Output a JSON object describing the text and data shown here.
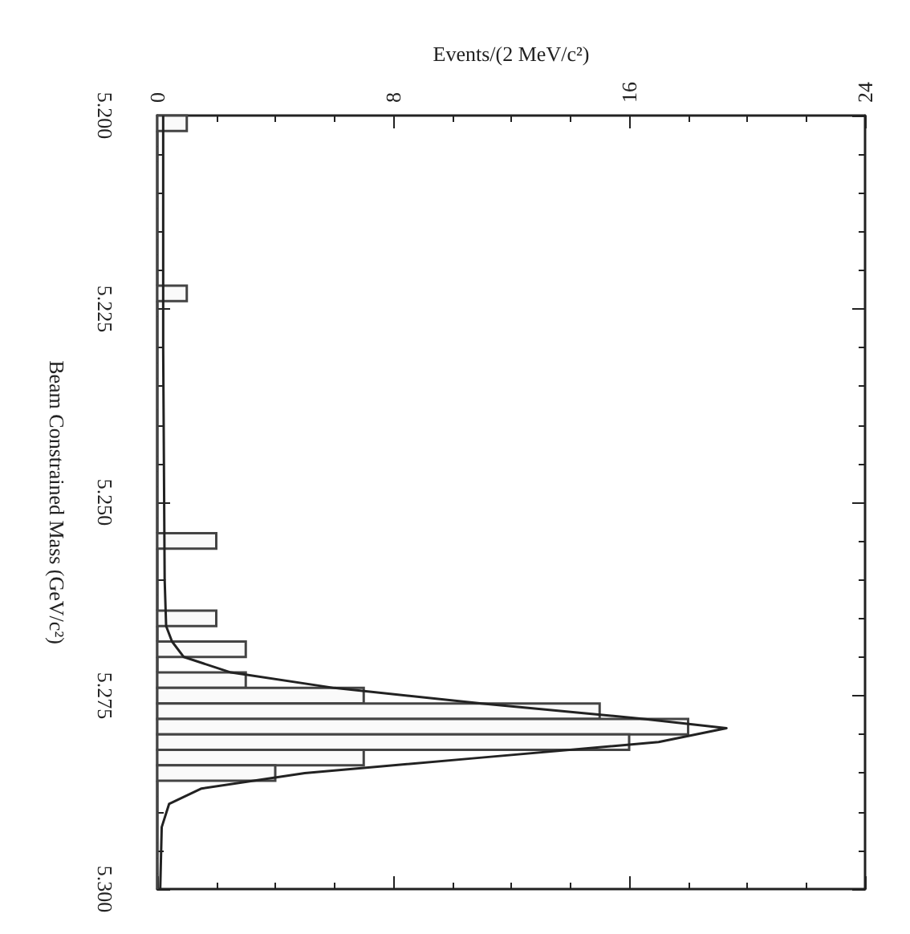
{
  "chart_data": {
    "type": "histogram",
    "orientation": "horizontal",
    "xlabel": "Events/(2 MeV/c²)",
    "ylabel": "Beam Constrained Mass (GeV/c²)",
    "xlim": [
      0,
      24
    ],
    "xticks": [
      0,
      8,
      16,
      24
    ],
    "ylim": [
      5.3,
      5.2
    ],
    "yticks": [
      {
        "value": 5.2,
        "label": "5.200"
      },
      {
        "value": 5.225,
        "label": "5.225"
      },
      {
        "value": 5.25,
        "label": "5.250"
      },
      {
        "value": 5.275,
        "label": "5.275"
      },
      {
        "value": 5.3,
        "label": "5.300"
      }
    ],
    "bins": [
      5.2,
      5.202,
      5.204,
      5.206,
      5.208,
      5.21,
      5.212,
      5.214,
      5.216,
      5.218,
      5.22,
      5.222,
      5.224,
      5.226,
      5.228,
      5.23,
      5.232,
      5.234,
      5.236,
      5.238,
      5.24,
      5.242,
      5.244,
      5.246,
      5.248,
      5.25,
      5.252,
      5.254,
      5.256,
      5.258,
      5.26,
      5.262,
      5.264,
      5.266,
      5.268,
      5.27,
      5.272,
      5.274,
      5.276,
      5.278,
      5.28,
      5.282,
      5.284,
      5.286,
      5.288,
      5.29,
      5.292,
      5.294,
      5.296,
      5.298,
      5.3
    ],
    "series": [
      {
        "type": "histogram",
        "color": "#444444",
        "values": [
          1,
          0,
          0,
          0,
          0,
          0,
          0,
          0,
          0,
          0,
          0,
          1,
          0,
          0,
          0,
          0,
          0,
          0,
          0,
          0,
          0,
          0,
          0,
          0,
          0,
          0,
          0,
          2,
          0,
          0,
          0,
          0,
          2,
          0,
          3,
          0,
          3,
          7,
          15,
          18,
          16,
          7,
          4,
          0,
          0,
          0,
          0,
          0,
          0,
          0
        ]
      },
      {
        "type": "line",
        "color": "#222222",
        "x": [
          5.2,
          5.23,
          5.26,
          5.266,
          5.268,
          5.27,
          5.272,
          5.274,
          5.276,
          5.278,
          5.2792,
          5.281,
          5.283,
          5.285,
          5.287,
          5.289,
          5.292,
          5.3
        ],
        "values": [
          0.2,
          0.2,
          0.25,
          0.3,
          0.5,
          0.9,
          2.5,
          6,
          11,
          16.5,
          19.3,
          17,
          11,
          5,
          1.5,
          0.4,
          0.15,
          0.1
        ]
      }
    ]
  }
}
